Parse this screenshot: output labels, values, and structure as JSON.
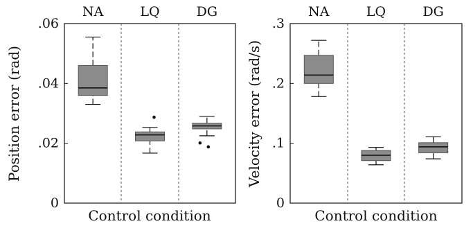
{
  "colors": {
    "box_fill": "#8c8c8c",
    "axis": "#111111",
    "divider": "#555555",
    "median": "#111111"
  },
  "chart_data": [
    {
      "type": "box",
      "xlabel": "Control condition",
      "ylabel": "Position error (rad)",
      "ylim": [
        0,
        0.06
      ],
      "yticks": [
        {
          "value": 0,
          "label": "0"
        },
        {
          "value": 0.02,
          "label": ".02"
        },
        {
          "value": 0.04,
          "label": ".04"
        },
        {
          "value": 0.06,
          "label": ".06"
        }
      ],
      "categories": [
        "NA",
        "LQ",
        "DG"
      ],
      "grid": false,
      "boxes": [
        {
          "category": "NA",
          "whisker_low": 0.033,
          "q1": 0.036,
          "median": 0.0385,
          "q3": 0.046,
          "whisker_high": 0.0555,
          "outliers": []
        },
        {
          "category": "LQ",
          "whisker_low": 0.0167,
          "q1": 0.0208,
          "median": 0.0228,
          "q3": 0.0238,
          "whisker_high": 0.0253,
          "outliers": [
            0.0287
          ]
        },
        {
          "category": "DG",
          "whisker_low": 0.0225,
          "q1": 0.0248,
          "median": 0.0258,
          "q3": 0.0267,
          "whisker_high": 0.029,
          "outliers": [
            0.0201,
            0.0188
          ]
        }
      ]
    },
    {
      "type": "box",
      "xlabel": "Control condition",
      "ylabel": "Velocity error (rad/s)",
      "ylim": [
        0,
        0.3
      ],
      "yticks": [
        {
          "value": 0,
          "label": "0"
        },
        {
          "value": 0.1,
          "label": ".1"
        },
        {
          "value": 0.2,
          "label": ".2"
        },
        {
          "value": 0.3,
          "label": ".3"
        }
      ],
      "categories": [
        "NA",
        "LQ",
        "DG"
      ],
      "grid": false,
      "boxes": [
        {
          "category": "NA",
          "whisker_low": 0.178,
          "q1": 0.2,
          "median": 0.214,
          "q3": 0.247,
          "whisker_high": 0.272,
          "outliers": []
        },
        {
          "category": "LQ",
          "whisker_low": 0.064,
          "q1": 0.071,
          "median": 0.08,
          "q3": 0.088,
          "whisker_high": 0.093,
          "outliers": []
        },
        {
          "category": "DG",
          "whisker_low": 0.074,
          "q1": 0.084,
          "median": 0.094,
          "q3": 0.101,
          "whisker_high": 0.111,
          "outliers": []
        }
      ]
    }
  ]
}
